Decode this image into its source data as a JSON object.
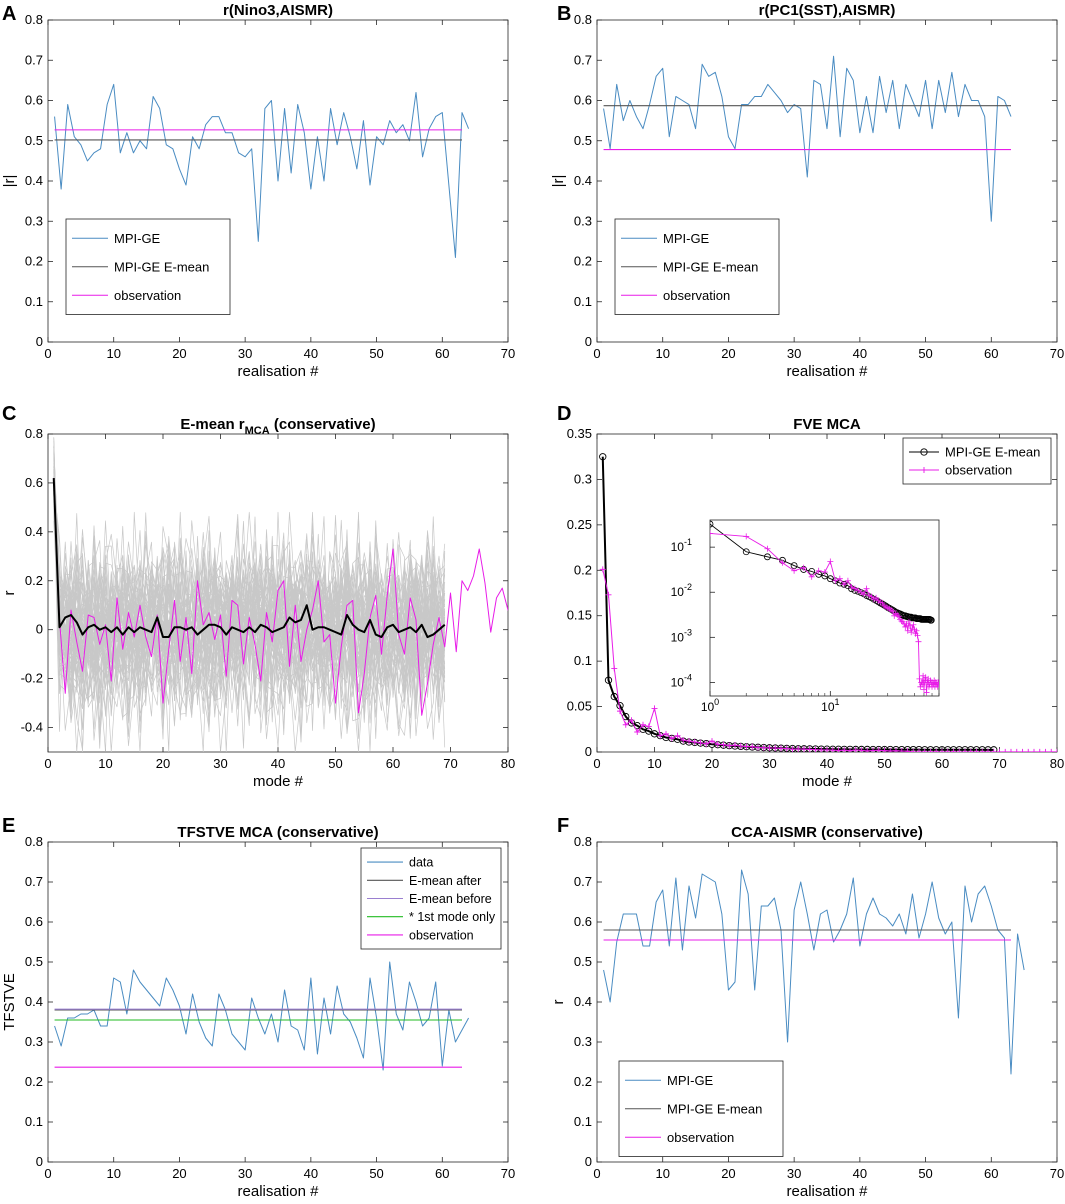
{
  "colors": {
    "blue": "#4a8cc2",
    "black": "#000000",
    "dark": "#555555",
    "magenta": "#e81ce8",
    "grey": "#c8c8c8",
    "green": "#22bb22",
    "purple": "#9a7fd0"
  },
  "chart_data": [
    {
      "id": "A",
      "letter": "A",
      "type": "line",
      "title": "r(Nino3,AISMR)",
      "xlabel": "realisation #",
      "ylabel": "|r|",
      "xlim": [
        0,
        70
      ],
      "ylim": [
        0,
        0.8
      ],
      "xticks": [
        "0",
        "10",
        "20",
        "30",
        "40",
        "50",
        "60",
        "70"
      ],
      "yticks": [
        "0",
        "0.1",
        "0.2",
        "0.3",
        "0.4",
        "0.5",
        "0.6",
        "0.7",
        "0.8"
      ],
      "series": [
        {
          "name": "MPI-GE",
          "color": "blue",
          "values": [
            0.56,
            0.38,
            0.59,
            0.51,
            0.49,
            0.45,
            0.47,
            0.48,
            0.59,
            0.64,
            0.47,
            0.52,
            0.47,
            0.5,
            0.48,
            0.61,
            0.58,
            0.49,
            0.48,
            0.43,
            0.39,
            0.51,
            0.48,
            0.54,
            0.56,
            0.56,
            0.52,
            0.52,
            0.47,
            0.46,
            0.48,
            0.25,
            0.58,
            0.6,
            0.4,
            0.58,
            0.42,
            0.59,
            0.52,
            0.38,
            0.51,
            0.4,
            0.58,
            0.49,
            0.57,
            0.51,
            0.43,
            0.55,
            0.39,
            0.51,
            0.49,
            0.55,
            0.52,
            0.54,
            0.5,
            0.62,
            0.46,
            0.53,
            0.56,
            0.57,
            0.39,
            0.21,
            0.57,
            0.53
          ]
        },
        {
          "name": "MPI-GE E-mean",
          "color": "dark",
          "constant": 0.502,
          "x_range": [
            1,
            63
          ]
        },
        {
          "name": "observation",
          "color": "magenta",
          "constant": 0.527,
          "x_range": [
            1,
            63
          ]
        }
      ],
      "legend": [
        "MPI-GE",
        "MPI-GE E-mean",
        "observation"
      ],
      "legend_position": "lower-left"
    },
    {
      "id": "B",
      "letter": "B",
      "type": "line",
      "title": "r(PC1(SST),AISMR)",
      "xlabel": "realisation #",
      "ylabel": "|r|",
      "xlim": [
        0,
        70
      ],
      "ylim": [
        0,
        0.8
      ],
      "xticks": [
        "0",
        "10",
        "20",
        "30",
        "40",
        "50",
        "60",
        "70"
      ],
      "yticks": [
        "0",
        "0.1",
        "0.2",
        "0.3",
        "0.4",
        "0.5",
        "0.6",
        "0.7",
        "0.8"
      ],
      "series": [
        {
          "name": "MPI-GE",
          "color": "blue",
          "values": [
            0.58,
            0.48,
            0.64,
            0.55,
            0.6,
            0.56,
            0.53,
            0.59,
            0.66,
            0.68,
            0.51,
            0.61,
            0.6,
            0.59,
            0.53,
            0.69,
            0.66,
            0.67,
            0.61,
            0.51,
            0.48,
            0.59,
            0.59,
            0.61,
            0.61,
            0.64,
            0.62,
            0.6,
            0.57,
            0.59,
            0.58,
            0.41,
            0.65,
            0.64,
            0.53,
            0.71,
            0.51,
            0.68,
            0.65,
            0.52,
            0.61,
            0.52,
            0.66,
            0.57,
            0.65,
            0.53,
            0.64,
            0.6,
            0.56,
            0.65,
            0.53,
            0.65,
            0.57,
            0.67,
            0.56,
            0.64,
            0.6,
            0.6,
            0.56,
            0.3,
            0.61,
            0.6,
            0.56
          ]
        },
        {
          "name": "MPI-GE E-mean",
          "color": "dark",
          "constant": 0.587,
          "x_range": [
            1,
            63
          ]
        },
        {
          "name": "observation",
          "color": "magenta",
          "constant": 0.478,
          "x_range": [
            1,
            63
          ]
        }
      ],
      "legend": [
        "MPI-GE",
        "MPI-GE E-mean",
        "observation"
      ],
      "legend_position": "lower-left"
    },
    {
      "id": "C",
      "letter": "C",
      "type": "line",
      "title": "E-mean r",
      "title_subscript": "MCA",
      "title_suffix": " (conservative)",
      "xlabel": "mode #",
      "ylabel": "r",
      "xlim": [
        0,
        80
      ],
      "ylim": [
        -0.5,
        0.8
      ],
      "xticks": [
        "0",
        "10",
        "20",
        "30",
        "40",
        "50",
        "60",
        "70",
        "80"
      ],
      "yticks": [
        "-0.4",
        "-0.2",
        "0",
        "0.2",
        "0.4",
        "0.6",
        "0.8"
      ],
      "series": [
        {
          "name": "realisations",
          "color": "grey",
          "count": 63,
          "n_modes": 69,
          "spread": 0.17
        },
        {
          "name": "observation",
          "color": "magenta",
          "values": [
            0.62,
            0.04,
            -0.26,
            0.08,
            -0.05,
            -0.17,
            0.06,
            0.05,
            -0.06,
            0.02,
            -0.21,
            0.13,
            -0.08,
            0.07,
            -0.03,
            0.1,
            -0.03,
            -0.11,
            0.06,
            -0.3,
            -0.08,
            0.12,
            -0.13,
            0.05,
            -0.18,
            0.2,
            0.02,
            0.07,
            -0.04,
            0.06,
            -0.19,
            0.12,
            0.1,
            -0.14,
            0.05,
            -0.06,
            -0.21,
            0.07,
            -0.05,
            0.16,
            0.2,
            -0.15,
            0.1,
            -0.13,
            0.0,
            0.08,
            0.2,
            -0.05,
            -0.02,
            -0.3,
            -0.07,
            0.1,
            0.12,
            -0.34,
            -0.18,
            0.05,
            0.14,
            -0.1,
            0.14,
            0.33,
            -0.02,
            -0.1,
            0.13,
            0.04,
            -0.35,
            -0.22,
            -0.06,
            0.05,
            -0.07,
            0.15,
            -0.09,
            0.2,
            0.16,
            0.22,
            0.33,
            0.19,
            -0.01,
            0.13,
            0.17,
            0.08,
            0.21
          ]
        },
        {
          "name": "E-mean",
          "color": "black",
          "values": [
            0.62,
            0.01,
            0.05,
            0.06,
            0.03,
            -0.02,
            0.01,
            0.02,
            0.0,
            0.01,
            -0.01,
            0.01,
            -0.02,
            0.01,
            -0.01,
            0.01,
            0.0,
            -0.01,
            0.05,
            -0.03,
            -0.03,
            0.01,
            0.01,
            0.0,
            0.01,
            -0.02,
            0.0,
            0.02,
            0.02,
            0.01,
            -0.02,
            0.01,
            0.0,
            -0.01,
            0.01,
            -0.01,
            0.02,
            0.01,
            -0.01,
            0.0,
            0.01,
            0.05,
            0.03,
            0.04,
            0.1,
            0.0,
            0.01,
            0.01,
            0.0,
            -0.01,
            -0.02,
            0.06,
            0.02,
            0.0,
            -0.01,
            0.04,
            -0.02,
            -0.03,
            0.01,
            0.02,
            -0.01,
            0.0,
            0.01,
            -0.01,
            0.02,
            -0.03,
            -0.02,
            0.0,
            0.02
          ]
        }
      ]
    },
    {
      "id": "D",
      "letter": "D",
      "type": "line",
      "title": "FVE MCA",
      "xlabel": "mode #",
      "ylabel": "",
      "xlim": [
        0,
        80
      ],
      "ylim": [
        0,
        0.35
      ],
      "xticks": [
        "0",
        "10",
        "20",
        "30",
        "40",
        "50",
        "60",
        "70",
        "80"
      ],
      "yticks": [
        "0",
        "0.05",
        "0.1",
        "0.15",
        "0.2",
        "0.25",
        "0.3",
        "0.35"
      ],
      "series": [
        {
          "name": "MPI-GE  E-mean",
          "color": "black",
          "marker": "circle",
          "values": [
            0.325,
            0.079,
            0.061,
            0.051,
            0.039,
            0.032,
            0.029,
            0.025,
            0.023,
            0.02,
            0.018,
            0.016,
            0.015,
            0.014,
            0.012,
            0.011,
            0.0105,
            0.0098,
            0.0092,
            0.0085,
            0.008,
            0.0075,
            0.007,
            0.0066,
            0.0062,
            0.0058,
            0.0055,
            0.0052,
            0.0049,
            0.0046,
            0.0044,
            0.0042,
            0.004,
            0.0038,
            0.0036,
            0.0035,
            0.0034,
            0.0033,
            0.0032,
            0.0031,
            0.003,
            0.003,
            0.0029,
            0.0029,
            0.0028,
            0.0028,
            0.0028,
            0.0027,
            0.0027,
            0.0027,
            0.0027,
            0.0026,
            0.0026,
            0.0026,
            0.0026,
            0.0026,
            0.0025,
            0.0025,
            0.0025,
            0.0025,
            0.0025,
            0.0025,
            0.0025,
            0.0025,
            0.0025,
            0.0025,
            0.0025,
            0.0024,
            0.0024
          ]
        },
        {
          "name": "observation",
          "color": "magenta",
          "marker": "plus",
          "values": [
            0.201,
            0.173,
            0.092,
            0.045,
            0.03,
            0.035,
            0.022,
            0.03,
            0.028,
            0.048,
            0.018,
            0.02,
            0.015,
            0.018,
            0.013,
            0.012,
            0.011,
            0.01,
            0.009,
            0.012,
            0.0085,
            0.008,
            0.007,
            0.0075,
            0.0065,
            0.006,
            0.0058,
            0.005,
            0.0047,
            0.0045,
            0.0043,
            0.004,
            0.0038,
            0.003,
            0.0034,
            0.0031,
            0.0029,
            0.0025,
            0.0023,
            0.0022,
            0.002,
            0.0017,
            0.002,
            0.0014,
            0.0022,
            0.0018,
            0.0013,
            0.0016,
            0.0019,
            0.0015,
            0.0012,
            0.0014,
            0.0011,
            0.0008,
            0.00012,
            8e-05,
            0.0001,
            9e-05,
            0.00014,
            7e-05,
            0.00011,
            0.00013,
            6e-05,
            0.0001,
            0.00012,
            8e-05,
            9e-05,
            0.00011,
            0.0001,
            8e-05,
            0.0001,
            9e-05,
            0.00011,
            8e-05,
            0.0001,
            9e-05,
            0.0001,
            8e-05,
            0.0001,
            9e-05
          ]
        }
      ],
      "legend": [
        "MPI-GE  E-mean",
        "observation"
      ],
      "legend_position": "top-right",
      "inset": {
        "type": "loglog",
        "xticks": [
          "10",
          "10"
        ],
        "xtick_exponents": [
          "0",
          "1"
        ],
        "xtick_values": [
          1,
          10
        ],
        "yticks": [
          "10",
          "10",
          "10",
          "10"
        ],
        "ytick_exponents": [
          "-1",
          "-2",
          "-3",
          "-4"
        ],
        "ytick_values": [
          0.1,
          0.01,
          0.001,
          0.0001
        ]
      }
    },
    {
      "id": "E",
      "letter": "E",
      "type": "line",
      "title": "TFSTVE MCA (conservative)",
      "xlabel": "realisation #",
      "ylabel": "TFSTVE",
      "xlim": [
        0,
        70
      ],
      "ylim": [
        0,
        0.8
      ],
      "xticks": [
        "0",
        "10",
        "20",
        "30",
        "40",
        "50",
        "60",
        "70"
      ],
      "yticks": [
        "0",
        "0.1",
        "0.2",
        "0.3",
        "0.4",
        "0.5",
        "0.6",
        "0.7",
        "0.8"
      ],
      "series": [
        {
          "name": "data",
          "color": "blue",
          "values": [
            0.34,
            0.29,
            0.36,
            0.36,
            0.37,
            0.37,
            0.38,
            0.34,
            0.34,
            0.46,
            0.45,
            0.37,
            0.48,
            0.45,
            0.43,
            0.41,
            0.39,
            0.46,
            0.43,
            0.39,
            0.32,
            0.42,
            0.35,
            0.31,
            0.29,
            0.42,
            0.38,
            0.32,
            0.3,
            0.28,
            0.41,
            0.36,
            0.32,
            0.37,
            0.3,
            0.43,
            0.34,
            0.33,
            0.28,
            0.46,
            0.27,
            0.41,
            0.32,
            0.44,
            0.37,
            0.35,
            0.31,
            0.26,
            0.46,
            0.36,
            0.23,
            0.5,
            0.37,
            0.33,
            0.45,
            0.4,
            0.34,
            0.36,
            0.45,
            0.24,
            0.38,
            0.3,
            0.33,
            0.36
          ]
        },
        {
          "name": "E-mean after",
          "color": "dark",
          "constant": 0.38,
          "x_range": [
            1,
            63
          ]
        },
        {
          "name": "E-mean before",
          "color": "purple",
          "constant": 0.382,
          "x_range": [
            1,
            63
          ]
        },
        {
          "name": "* 1st mode only",
          "color": "green",
          "constant": 0.355,
          "x_range": [
            1,
            63
          ]
        },
        {
          "name": "observation",
          "color": "magenta",
          "constant": 0.237,
          "x_range": [
            1,
            63
          ]
        }
      ],
      "legend": [
        "data",
        "E-mean after",
        "E-mean before",
        "* 1st mode only",
        "observation"
      ],
      "legend_position": "top-right"
    },
    {
      "id": "F",
      "letter": "F",
      "type": "line",
      "title": "CCA-AISMR (conservative)",
      "xlabel": "realisation #",
      "ylabel": "r",
      "xlim": [
        0,
        70
      ],
      "ylim": [
        0,
        0.8
      ],
      "xticks": [
        "0",
        "10",
        "20",
        "30",
        "40",
        "50",
        "60",
        "70"
      ],
      "yticks": [
        "0",
        "0.1",
        "0.2",
        "0.3",
        "0.4",
        "0.5",
        "0.6",
        "0.7",
        "0.8"
      ],
      "series": [
        {
          "name": "MPI-GE",
          "color": "blue",
          "values": [
            0.48,
            0.4,
            0.55,
            0.62,
            0.62,
            0.62,
            0.54,
            0.54,
            0.65,
            0.68,
            0.54,
            0.71,
            0.53,
            0.69,
            0.61,
            0.72,
            0.71,
            0.7,
            0.62,
            0.43,
            0.45,
            0.73,
            0.67,
            0.43,
            0.64,
            0.64,
            0.66,
            0.58,
            0.3,
            0.63,
            0.7,
            0.62,
            0.53,
            0.62,
            0.63,
            0.55,
            0.58,
            0.62,
            0.71,
            0.54,
            0.62,
            0.66,
            0.62,
            0.61,
            0.59,
            0.62,
            0.57,
            0.67,
            0.56,
            0.62,
            0.7,
            0.61,
            0.57,
            0.6,
            0.36,
            0.69,
            0.6,
            0.67,
            0.69,
            0.64,
            0.58,
            0.56,
            0.22,
            0.57,
            0.48
          ]
        },
        {
          "name": "MPI-GE E-mean",
          "color": "dark",
          "constant": 0.58,
          "x_range": [
            1,
            63
          ]
        },
        {
          "name": "observation",
          "color": "magenta",
          "constant": 0.555,
          "x_range": [
            1,
            63
          ]
        }
      ],
      "legend": [
        "MPI-GE",
        "MPI-GE E-mean",
        "observation"
      ],
      "legend_position": "lower-left"
    }
  ]
}
